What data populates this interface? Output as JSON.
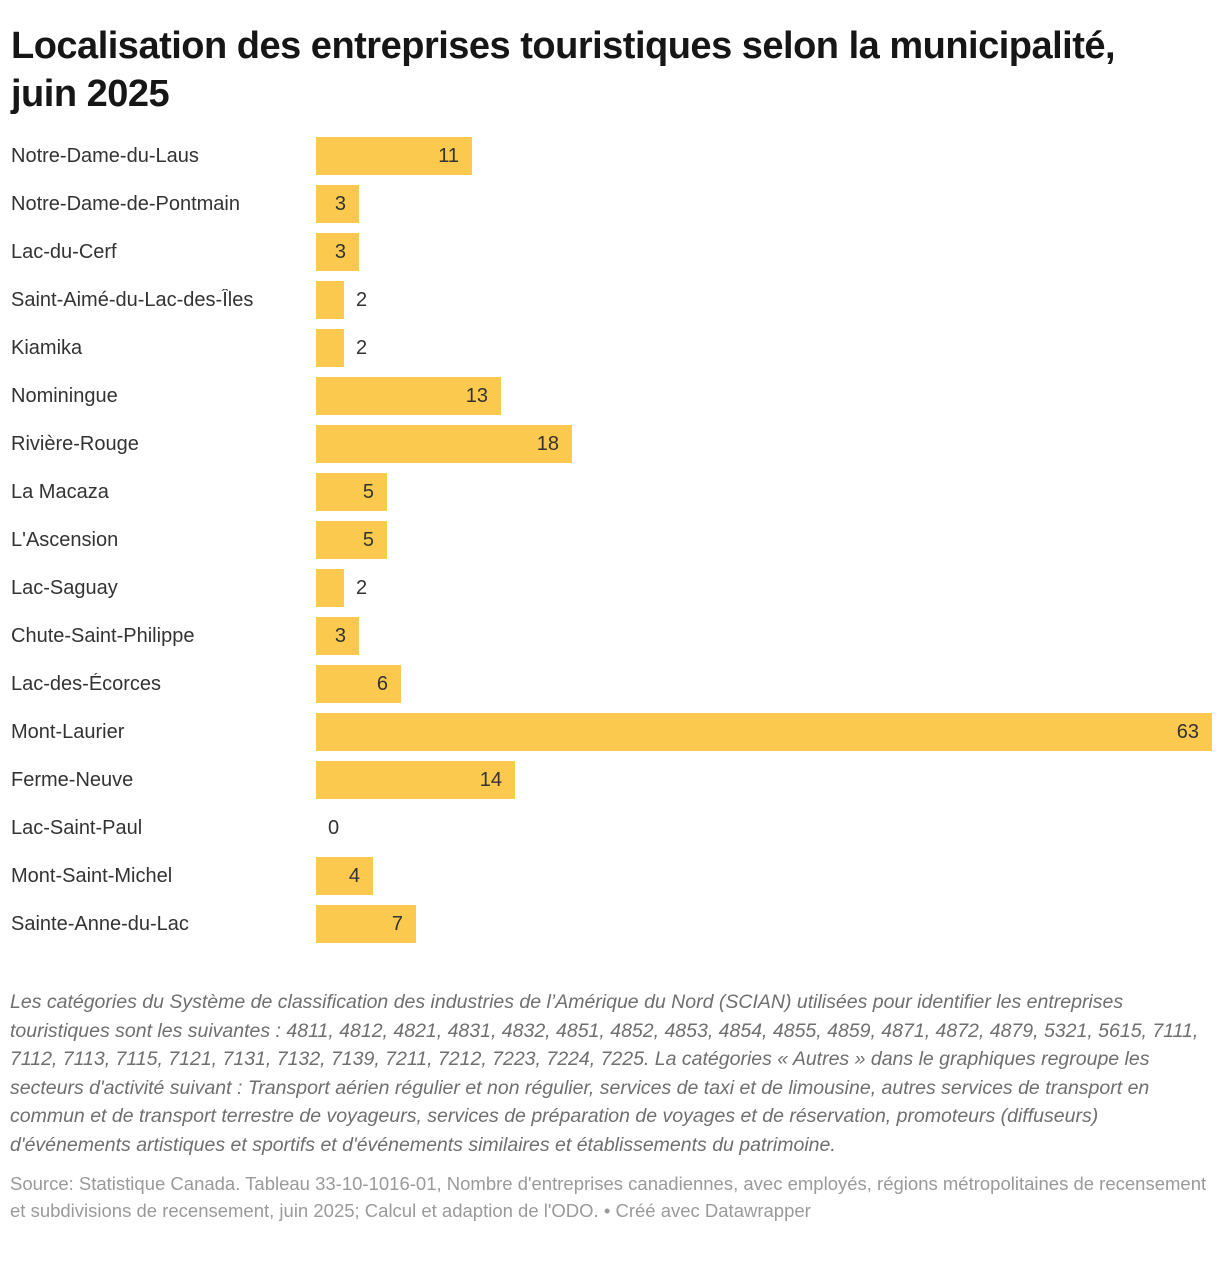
{
  "title": "Localisation des entreprises touristiques selon la municipalité, juin 2025",
  "chart_data": {
    "type": "bar",
    "orientation": "horizontal",
    "categories": [
      "Notre-Dame-du-Laus",
      "Notre-Dame-de-Pontmain",
      "Lac-du-Cerf",
      "Saint-Aimé-du-Lac-des-Îles",
      "Kiamika",
      "Nominingue",
      "Rivière-Rouge",
      "La Macaza",
      "L'Ascension",
      "Lac-Saguay",
      "Chute-Saint-Philippe",
      "Lac-des-Écorces",
      "Mont-Laurier",
      "Ferme-Neuve",
      "Lac-Saint-Paul",
      "Mont-Saint-Michel",
      "Sainte-Anne-du-Lac"
    ],
    "values": [
      11,
      3,
      3,
      2,
      2,
      13,
      18,
      5,
      5,
      2,
      3,
      6,
      63,
      14,
      0,
      4,
      7
    ],
    "xlim": [
      0,
      63
    ],
    "bar_color": "#FAC94D",
    "value_label_color": "#333333",
    "value_labels_visible": true,
    "grid": false,
    "legend": "none"
  },
  "notes": "Les catégories du Système de classification des industries de l’Amérique du Nord (SCIAN) utilisées pour identifier les entreprises touristiques sont les suivantes : 4811, 4812, 4821, 4831, 4832, 4851, 4852, 4853, 4854, 4855, 4859, 4871, 4872, 4879, 5321, 5615, 7111, 7112, 7113, 7115, 7121, 7131, 7132, 7139, 7211, 7212, 7223, 7224, 7225. La catégories « Autres » dans le graphiques regroupe les secteurs d'activité suivant : Transport aérien régulier et non régulier, services de taxi et de limousine, autres services de transport en commun et de transport terrestre de voyageurs, services de préparation de voyages et de réservation, promoteurs (diffuseurs) d'événements artistiques et sportifs et d'événements similaires et établissements du patrimoine.",
  "footer": {
    "source": "Source: Statistique Canada. Tableau 33-10-1016-01, Nombre d'entreprises canadiennes, avec employés, régions métropolitaines de recensement et subdivisions de recensement, juin 2025; Calcul et adaption de l'ODO.",
    "separator": " • ",
    "attribution": "Créé avec Datawrapper"
  }
}
